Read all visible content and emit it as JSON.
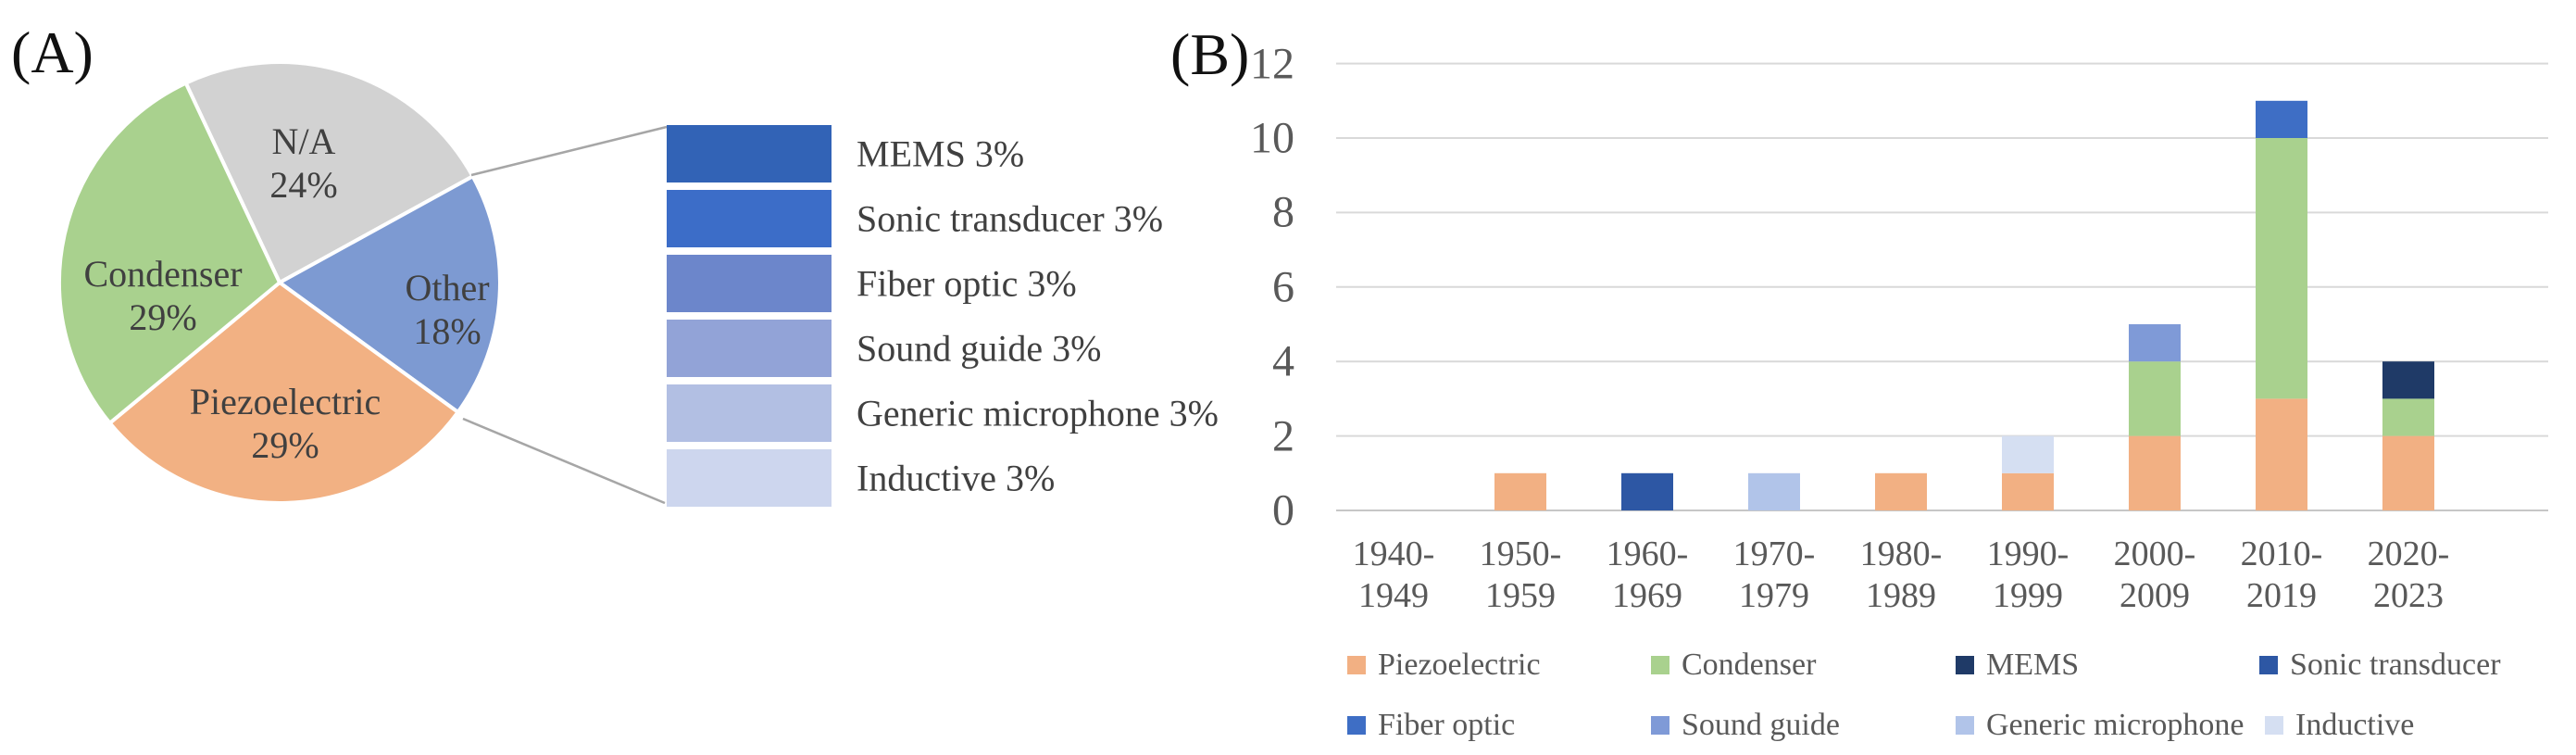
{
  "panels": {
    "a": {
      "label": "(A)"
    },
    "b": {
      "label": "(B)"
    }
  },
  "chart_data": [
    {
      "id": "microphone-type-share-pie",
      "type": "pie",
      "title": "",
      "start_angle_deg": -25.2,
      "slices": [
        {
          "name": "N/A",
          "pct": 24,
          "pct_label": "24%",
          "color": "#d2d2d2"
        },
        {
          "name": "Other",
          "pct": 18,
          "pct_label": "18%",
          "color": "#7d9ad2"
        },
        {
          "name": "Piezoelectric",
          "pct": 29,
          "pct_label": "29%",
          "color": "#f2b183"
        },
        {
          "name": "Condenser",
          "pct": 29,
          "pct_label": "29%",
          "color": "#a9d18e"
        }
      ],
      "breakout_of": "Other",
      "breakout": [
        {
          "name": "MEMS",
          "pct": 3,
          "display_label": "MEMS 3%",
          "color": "#3263b6"
        },
        {
          "name": "Sonic transducer",
          "pct": 3,
          "display_label": "Sonic transducer 3%",
          "color": "#3c6dc8"
        },
        {
          "name": "Fiber optic",
          "pct": 3,
          "display_label": "Fiber optic 3%",
          "color": "#6c86cb"
        },
        {
          "name": "Sound guide",
          "pct": 3,
          "display_label": "Sound guide 3%",
          "color": "#92a3d7"
        },
        {
          "name": "Generic microphone",
          "pct": 3,
          "display_label": "Generic microphone 3%",
          "color": "#b2bfe3"
        },
        {
          "name": "Inductive",
          "pct": 3,
          "display_label": "Inductive 3%",
          "color": "#cdd6ee"
        }
      ]
    },
    {
      "id": "publications-per-decade-stacked-bar",
      "type": "bar",
      "stacked": true,
      "title": "",
      "xlabel": "",
      "ylabel": "",
      "ylim": [
        0,
        12
      ],
      "yticks": [
        0,
        2,
        4,
        6,
        8,
        10,
        12
      ],
      "grid": true,
      "legend_position": "bottom",
      "categories": [
        "1940-1949",
        "1950-1959",
        "1960-1969",
        "1970-1979",
        "1980-1989",
        "1990-1999",
        "2000-2009",
        "2010-2019",
        "2020-2023"
      ],
      "category_labels": [
        {
          "line1": "1940-",
          "line2": "1949"
        },
        {
          "line1": "1950-",
          "line2": "1959"
        },
        {
          "line1": "1960-",
          "line2": "1969"
        },
        {
          "line1": "1970-",
          "line2": "1979"
        },
        {
          "line1": "1980-",
          "line2": "1989"
        },
        {
          "line1": "1990-",
          "line2": "1999"
        },
        {
          "line1": "2000-",
          "line2": "2009"
        },
        {
          "line1": "2010-",
          "line2": "2019"
        },
        {
          "line1": "2020-",
          "line2": "2023"
        }
      ],
      "series": [
        {
          "name": "Piezoelectric",
          "color": "#f2b083",
          "values": [
            0,
            1,
            0,
            0,
            1,
            1,
            2,
            3,
            2
          ]
        },
        {
          "name": "Condenser",
          "color": "#a9d18e",
          "values": [
            0,
            0,
            0,
            0,
            0,
            0,
            2,
            7,
            1
          ]
        },
        {
          "name": "MEMS",
          "color": "#1f3a67",
          "values": [
            0,
            0,
            0,
            0,
            0,
            0,
            0,
            0,
            1
          ]
        },
        {
          "name": "Sonic transducer",
          "color": "#2d57a4",
          "values": [
            0,
            0,
            1,
            0,
            0,
            0,
            0,
            0,
            0
          ]
        },
        {
          "name": "Fiber optic",
          "color": "#3e6ec5",
          "values": [
            0,
            0,
            0,
            0,
            0,
            0,
            0,
            1,
            0
          ]
        },
        {
          "name": "Sound guide",
          "color": "#7f9ad7",
          "values": [
            0,
            0,
            0,
            0,
            0,
            0,
            1,
            0,
            0
          ]
        },
        {
          "name": "Generic microphone",
          "color": "#b1c4e9",
          "values": [
            0,
            0,
            0,
            1,
            0,
            0,
            0,
            0,
            0
          ]
        },
        {
          "name": "Inductive",
          "color": "#d5dff2",
          "values": [
            0,
            0,
            0,
            0,
            0,
            1,
            0,
            0,
            0
          ]
        }
      ]
    }
  ]
}
